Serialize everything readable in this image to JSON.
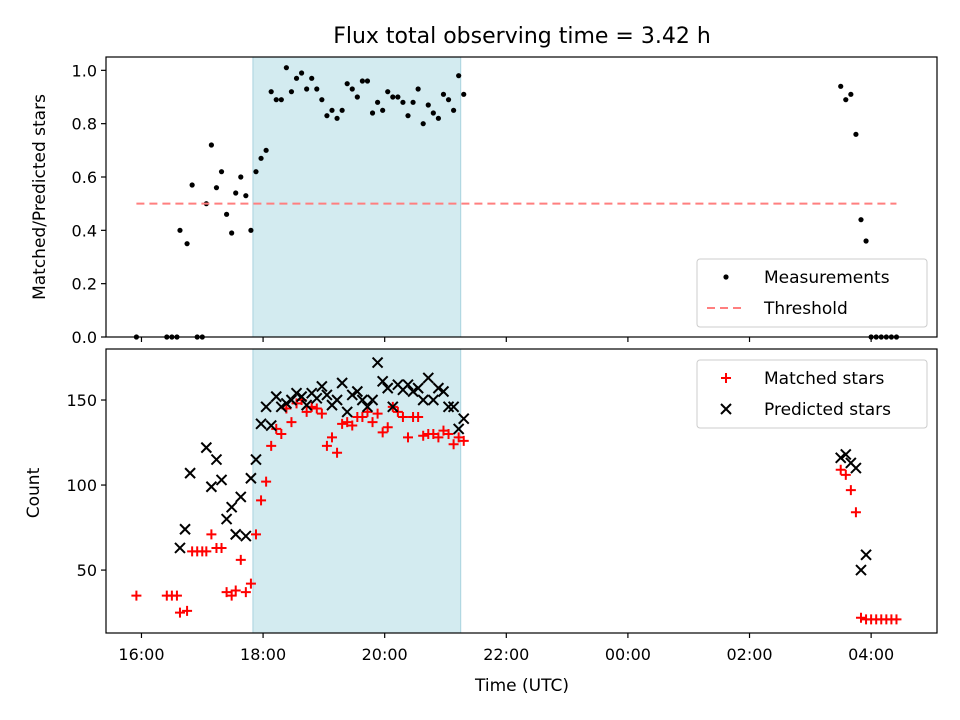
{
  "chart_data": [
    {
      "type": "scatter",
      "title": "Flux total observing time = 3.42 h",
      "xlabel": "",
      "ylabel": "Matched/Predicted stars",
      "xlim": [
        "15:25",
        "05:05"
      ],
      "ylim": [
        0,
        1.05
      ],
      "yticks": [
        0.0,
        0.2,
        0.4,
        0.6,
        0.8,
        1.0
      ],
      "ytick_labels": [
        "0.0",
        "0.2",
        "0.4",
        "0.6",
        "0.8",
        "1.0"
      ],
      "highlight_band": {
        "start": "17:50",
        "end": "21:15",
        "color": "#d3ebf0"
      },
      "legend_position": "lower right",
      "series": [
        {
          "name": "Measurements",
          "color": "#000000",
          "marker": "dot",
          "points": [
            [
              "15:55",
              0.0
            ],
            [
              "16:25",
              0.0
            ],
            [
              "16:30",
              0.0
            ],
            [
              "16:35",
              0.0
            ],
            [
              "16:38",
              0.4
            ],
            [
              "16:45",
              0.35
            ],
            [
              "16:50",
              0.57
            ],
            [
              "16:55",
              0.0
            ],
            [
              "17:00",
              0.0
            ],
            [
              "17:04",
              0.5
            ],
            [
              "17:09",
              0.72
            ],
            [
              "17:14",
              0.56
            ],
            [
              "17:19",
              0.62
            ],
            [
              "17:24",
              0.46
            ],
            [
              "17:29",
              0.39
            ],
            [
              "17:33",
              0.54
            ],
            [
              "17:38",
              0.6
            ],
            [
              "17:43",
              0.53
            ],
            [
              "17:48",
              0.4
            ],
            [
              "17:53",
              0.62
            ],
            [
              "17:58",
              0.67
            ],
            [
              "18:03",
              0.7
            ],
            [
              "18:08",
              0.92
            ],
            [
              "18:13",
              0.89
            ],
            [
              "18:18",
              0.89
            ],
            [
              "18:23",
              1.01
            ],
            [
              "18:28",
              0.92
            ],
            [
              "18:33",
              0.97
            ],
            [
              "18:38",
              0.99
            ],
            [
              "18:43",
              0.93
            ],
            [
              "18:48",
              0.97
            ],
            [
              "18:53",
              0.93
            ],
            [
              "18:58",
              0.89
            ],
            [
              "19:03",
              0.83
            ],
            [
              "19:08",
              0.85
            ],
            [
              "19:13",
              0.82
            ],
            [
              "19:18",
              0.85
            ],
            [
              "19:23",
              0.95
            ],
            [
              "19:28",
              0.93
            ],
            [
              "19:33",
              0.9
            ],
            [
              "19:38",
              0.96
            ],
            [
              "19:43",
              0.96
            ],
            [
              "19:48",
              0.84
            ],
            [
              "19:53",
              0.88
            ],
            [
              "19:58",
              0.85
            ],
            [
              "20:03",
              0.92
            ],
            [
              "20:08",
              0.9
            ],
            [
              "20:13",
              0.9
            ],
            [
              "20:18",
              0.88
            ],
            [
              "20:23",
              0.83
            ],
            [
              "20:28",
              0.88
            ],
            [
              "20:33",
              0.93
            ],
            [
              "20:38",
              0.8
            ],
            [
              "20:43",
              0.87
            ],
            [
              "20:48",
              0.84
            ],
            [
              "20:53",
              0.82
            ],
            [
              "20:58",
              0.91
            ],
            [
              "21:03",
              0.89
            ],
            [
              "21:08",
              0.85
            ],
            [
              "21:13",
              0.98
            ],
            [
              "21:18",
              0.91
            ],
            [
              "03:30",
              0.94
            ],
            [
              "03:35",
              0.89
            ],
            [
              "03:40",
              0.91
            ],
            [
              "03:45",
              0.76
            ],
            [
              "03:50",
              0.44
            ],
            [
              "03:55",
              0.36
            ],
            [
              "04:00",
              0.0
            ],
            [
              "04:05",
              0.0
            ],
            [
              "04:10",
              0.0
            ],
            [
              "04:15",
              0.0
            ],
            [
              "04:20",
              0.0
            ],
            [
              "04:25",
              0.0
            ]
          ]
        },
        {
          "name": "Threshold",
          "color": "#ff7f7f",
          "style": "dashed",
          "points": [
            [
              "15:55",
              0.5
            ],
            [
              "04:25",
              0.5
            ]
          ]
        }
      ]
    },
    {
      "type": "scatter",
      "title": "",
      "xlabel": "Time (UTC)",
      "ylabel": "Count",
      "xlim": [
        "15:25",
        "05:05"
      ],
      "ylim": [
        13,
        180
      ],
      "yticks": [
        50,
        100,
        150
      ],
      "ytick_labels": [
        "50",
        "100",
        "150"
      ],
      "xticks": [
        "16:00",
        "18:00",
        "20:00",
        "22:00",
        "00:00",
        "02:00",
        "04:00"
      ],
      "highlight_band": {
        "start": "17:50",
        "end": "21:15",
        "color": "#d3ebf0"
      },
      "legend_position": "upper right",
      "series": [
        {
          "name": "Matched stars",
          "color": "#ff0000",
          "marker": "plus",
          "points": [
            [
              "15:55",
              35
            ],
            [
              "16:25",
              35
            ],
            [
              "16:30",
              35
            ],
            [
              "16:35",
              35
            ],
            [
              "16:38",
              25
            ],
            [
              "16:45",
              26
            ],
            [
              "16:50",
              61
            ],
            [
              "16:55",
              61
            ],
            [
              "17:00",
              61
            ],
            [
              "17:04",
              61
            ],
            [
              "17:09",
              71
            ],
            [
              "17:14",
              63
            ],
            [
              "17:19",
              63
            ],
            [
              "17:24",
              37
            ],
            [
              "17:29",
              35
            ],
            [
              "17:33",
              38
            ],
            [
              "17:38",
              56
            ],
            [
              "17:43",
              37
            ],
            [
              "17:48",
              42
            ],
            [
              "17:53",
              71
            ],
            [
              "17:58",
              91
            ],
            [
              "18:03",
              102
            ],
            [
              "18:08",
              123
            ],
            [
              "18:13",
              133
            ],
            [
              "18:18",
              130
            ],
            [
              "18:23",
              145
            ],
            [
              "18:28",
              137
            ],
            [
              "18:33",
              148
            ],
            [
              "18:38",
              150
            ],
            [
              "18:43",
              143
            ],
            [
              "18:48",
              146
            ],
            [
              "18:53",
              145
            ],
            [
              "18:58",
              142
            ],
            [
              "19:03",
              123
            ],
            [
              "19:08",
              128
            ],
            [
              "19:13",
              119
            ],
            [
              "19:18",
              136
            ],
            [
              "19:23",
              137
            ],
            [
              "19:28",
              135
            ],
            [
              "19:33",
              140
            ],
            [
              "19:38",
              140
            ],
            [
              "19:43",
              143
            ],
            [
              "19:48",
              137
            ],
            [
              "19:53",
              142
            ],
            [
              "19:58",
              131
            ],
            [
              "20:03",
              134
            ],
            [
              "20:08",
              146
            ],
            [
              "20:13",
              143
            ],
            [
              "20:18",
              140
            ],
            [
              "20:23",
              128
            ],
            [
              "20:28",
              140
            ],
            [
              "20:33",
              140
            ],
            [
              "20:38",
              129
            ],
            [
              "20:43",
              130
            ],
            [
              "20:48",
              130
            ],
            [
              "20:53",
              128
            ],
            [
              "20:58",
              132
            ],
            [
              "21:03",
              130
            ],
            [
              "21:08",
              124
            ],
            [
              "21:13",
              128
            ],
            [
              "21:18",
              126
            ],
            [
              "03:30",
              109
            ],
            [
              "03:35",
              106
            ],
            [
              "03:40",
              97
            ],
            [
              "03:45",
              84
            ],
            [
              "03:50",
              22
            ],
            [
              "03:55",
              21
            ],
            [
              "04:00",
              21
            ],
            [
              "04:05",
              21
            ],
            [
              "04:10",
              21
            ],
            [
              "04:15",
              21
            ],
            [
              "04:20",
              21
            ],
            [
              "04:25",
              21
            ]
          ]
        },
        {
          "name": "Predicted stars",
          "color": "#000000",
          "marker": "x",
          "points": [
            [
              "16:38",
              63
            ],
            [
              "16:43",
              74
            ],
            [
              "16:48",
              107
            ],
            [
              "17:04",
              122
            ],
            [
              "17:09",
              99
            ],
            [
              "17:14",
              115
            ],
            [
              "17:19",
              103
            ],
            [
              "17:24",
              80
            ],
            [
              "17:29",
              87
            ],
            [
              "17:33",
              71
            ],
            [
              "17:38",
              93
            ],
            [
              "17:43",
              70
            ],
            [
              "17:48",
              104
            ],
            [
              "17:53",
              115
            ],
            [
              "17:58",
              136
            ],
            [
              "18:03",
              146
            ],
            [
              "18:08",
              135
            ],
            [
              "18:13",
              152
            ],
            [
              "18:18",
              146
            ],
            [
              "18:23",
              148
            ],
            [
              "18:28",
              150
            ],
            [
              "18:33",
              154
            ],
            [
              "18:38",
              152
            ],
            [
              "18:43",
              147
            ],
            [
              "18:48",
              154
            ],
            [
              "18:53",
              151
            ],
            [
              "18:58",
              158
            ],
            [
              "19:03",
              153
            ],
            [
              "19:08",
              147
            ],
            [
              "19:13",
              150
            ],
            [
              "19:18",
              160
            ],
            [
              "19:23",
              143
            ],
            [
              "19:28",
              153
            ],
            [
              "19:33",
              155
            ],
            [
              "19:38",
              150
            ],
            [
              "19:43",
              146
            ],
            [
              "19:48",
              150
            ],
            [
              "19:53",
              172
            ],
            [
              "19:58",
              161
            ],
            [
              "20:03",
              157
            ],
            [
              "20:08",
              146
            ],
            [
              "20:13",
              159
            ],
            [
              "20:18",
              156
            ],
            [
              "20:23",
              159
            ],
            [
              "20:28",
              155
            ],
            [
              "20:33",
              157
            ],
            [
              "20:38",
              150
            ],
            [
              "20:43",
              163
            ],
            [
              "20:48",
              150
            ],
            [
              "20:53",
              157
            ],
            [
              "20:58",
              155
            ],
            [
              "21:03",
              146
            ],
            [
              "21:08",
              146
            ],
            [
              "21:13",
              133
            ],
            [
              "21:18",
              139
            ],
            [
              "03:30",
              116
            ],
            [
              "03:35",
              118
            ],
            [
              "03:40",
              113
            ],
            [
              "03:45",
              110
            ],
            [
              "03:50",
              50
            ],
            [
              "03:55",
              59
            ]
          ]
        }
      ]
    }
  ]
}
